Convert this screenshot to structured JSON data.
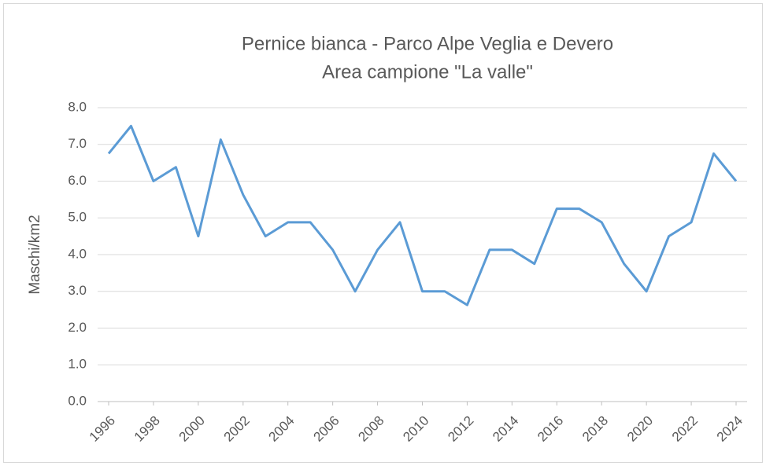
{
  "chart_data": {
    "type": "line",
    "title": "Pernice bianca - Parco Alpe Veglia e Devero",
    "subtitle": "Area campione \"La valle\"",
    "y_label": "Maschi/km2",
    "x": [
      1996,
      1997,
      1998,
      1999,
      2000,
      2001,
      2002,
      2003,
      2004,
      2005,
      2006,
      2007,
      2008,
      2009,
      2010,
      2011,
      2012,
      2013,
      2014,
      2015,
      2016,
      2017,
      2018,
      2019,
      2020,
      2021,
      2022,
      2023,
      2024
    ],
    "series": [
      {
        "name": "Maschi/km2",
        "color": "#5b9bd5",
        "values": [
          6.75,
          7.5,
          6.0,
          6.38,
          4.5,
          7.13,
          5.63,
          4.5,
          4.88,
          4.88,
          4.13,
          3.0,
          4.13,
          4.88,
          3.0,
          3.0,
          2.63,
          4.13,
          4.13,
          3.75,
          5.25,
          5.25,
          4.88,
          3.75,
          3.0,
          4.5,
          4.88,
          6.75,
          6.0
        ]
      }
    ],
    "xlim": [
      1996,
      2024
    ],
    "xticks": [
      1996,
      1998,
      2000,
      2002,
      2004,
      2006,
      2008,
      2010,
      2012,
      2014,
      2016,
      2018,
      2020,
      2022,
      2024
    ],
    "ylim": [
      0,
      8
    ],
    "yticks": [
      {
        "value": 0,
        "label": "0.0"
      },
      {
        "value": 1,
        "label": "1.0"
      },
      {
        "value": 2,
        "label": "2.0"
      },
      {
        "value": 3,
        "label": "3.0"
      },
      {
        "value": 4,
        "label": "4.0"
      },
      {
        "value": 5,
        "label": "5.0"
      },
      {
        "value": 6,
        "label": "6.0"
      },
      {
        "value": 7,
        "label": "7.0"
      },
      {
        "value": 8,
        "label": "8.0"
      }
    ],
    "grid": true
  }
}
